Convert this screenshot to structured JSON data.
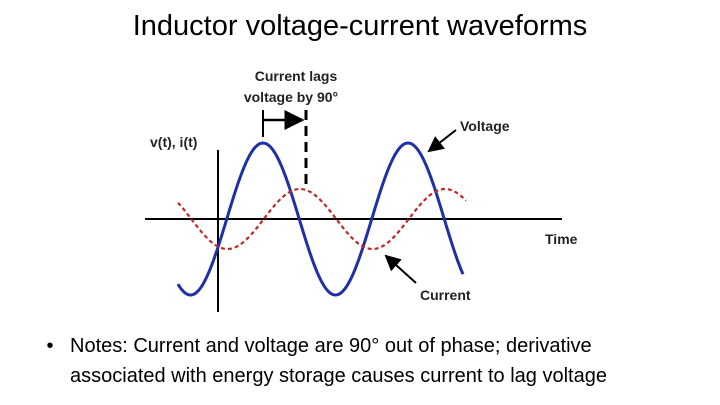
{
  "title": "Inductor voltage-current waveforms",
  "diagram": {
    "annotation_line1": "Current lags",
    "annotation_line2": "voltage by 90°",
    "y_axis_label": "v(t), i(t)",
    "x_axis_label": "Time",
    "voltage_label": "Voltage",
    "current_label": "Current"
  },
  "note": {
    "lines": [
      "Notes: Current and voltage are 90° out of phase; derivative",
      "associated with energy storage causes current to lag voltage"
    ]
  }
}
